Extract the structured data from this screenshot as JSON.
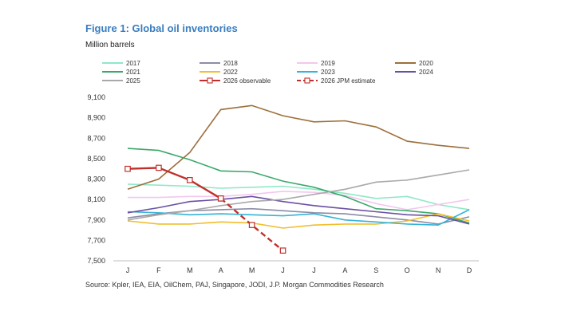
{
  "header": {
    "title": "Figure 1: Global oil inventories",
    "unit": "Million barrels"
  },
  "footer": {
    "source": "Source: Kpler, IEA, EIA, OilChem, PAJ, Singapore, JODI, J.P. Morgan Commodities Research"
  },
  "chart_data": {
    "type": "line",
    "title": "Figure 1: Global oil inventories",
    "ylabel": "Million barrels",
    "categories": [
      "J",
      "F",
      "M",
      "A",
      "M",
      "J",
      "J",
      "A",
      "S",
      "O",
      "N",
      "D"
    ],
    "yticks": [
      "7,500",
      "7,700",
      "7,900",
      "8,100",
      "8,300",
      "8,500",
      "8,700",
      "8,900",
      "9,100"
    ],
    "ylim": [
      7500,
      9100
    ],
    "grid": false,
    "legend_position": "top",
    "series": [
      {
        "name": "2017",
        "color": "#8fe8c8",
        "dash": "solid",
        "values": [
          8250,
          8240,
          8230,
          8210,
          8220,
          8230,
          8200,
          8160,
          8110,
          8130,
          8050,
          8000
        ]
      },
      {
        "name": "2018",
        "color": "#8c8ca6",
        "dash": "solid",
        "values": [
          7920,
          7960,
          7990,
          8000,
          8010,
          7990,
          7970,
          7960,
          7930,
          7900,
          7860,
          7930
        ]
      },
      {
        "name": "2019",
        "color": "#f3c7ee",
        "dash": "solid",
        "values": [
          8120,
          8120,
          8130,
          8130,
          8150,
          8180,
          8170,
          8140,
          8060,
          8000,
          8050,
          8100
        ]
      },
      {
        "name": "2020",
        "color": "#9c6f3a",
        "dash": "solid",
        "values": [
          8200,
          8300,
          8560,
          8980,
          9020,
          8920,
          8860,
          8870,
          8810,
          8670,
          8630,
          8600
        ]
      },
      {
        "name": "2021",
        "color": "#3aa86a",
        "dash": "solid",
        "values": [
          8600,
          8580,
          8490,
          8380,
          8370,
          8280,
          8220,
          8130,
          8010,
          7990,
          7960,
          7870
        ]
      },
      {
        "name": "2022",
        "color": "#f2be2c",
        "dash": "solid",
        "values": [
          7890,
          7860,
          7860,
          7880,
          7870,
          7820,
          7850,
          7860,
          7860,
          7890,
          7960,
          7890
        ]
      },
      {
        "name": "2023",
        "color": "#36b3d6",
        "dash": "solid",
        "values": [
          7980,
          7970,
          7950,
          7960,
          7950,
          7940,
          7960,
          7900,
          7880,
          7860,
          7850,
          8000
        ]
      },
      {
        "name": "2024",
        "color": "#6a4fa2",
        "dash": "solid",
        "values": [
          7970,
          8020,
          8080,
          8100,
          8130,
          8080,
          8040,
          8010,
          7980,
          7950,
          7940,
          7860
        ]
      },
      {
        "name": "2025",
        "color": "#a9a9a9",
        "dash": "solid",
        "values": [
          7900,
          7950,
          7990,
          8040,
          8080,
          8100,
          8150,
          8200,
          8270,
          8290,
          8340,
          8390
        ]
      },
      {
        "name": "2026 observable",
        "color": "#c0302b",
        "dash": "solid",
        "marker": true,
        "values": [
          8400,
          8410,
          8290,
          8110,
          null,
          null,
          null,
          null,
          null,
          null,
          null,
          null
        ]
      },
      {
        "name": "2026 JPM estimate",
        "color": "#c0302b",
        "dash": "dashed",
        "marker": true,
        "values": [
          null,
          null,
          null,
          8110,
          7850,
          7600,
          null,
          null,
          null,
          null,
          null,
          null
        ]
      }
    ]
  }
}
